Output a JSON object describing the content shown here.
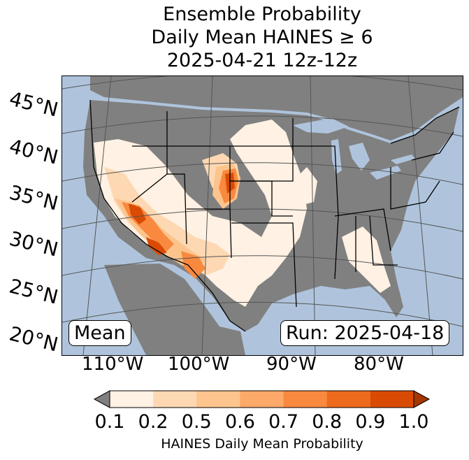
{
  "title": {
    "line1": "Ensemble Probability",
    "line2": "Daily Mean HAINES ≥ 6",
    "line3": "2025-04-21 12z-12z"
  },
  "map": {
    "latitude_labels": [
      "45°N",
      "40°N",
      "35°N",
      "30°N",
      "25°N",
      "20°N"
    ],
    "longitude_labels": [
      "110°W",
      "100°W",
      "90°W",
      "80°W"
    ],
    "mean_badge": "Mean",
    "run_badge": "Run: 2025-04-18",
    "colors": {
      "ocean": "#afc4dc",
      "land_masked": "#808080",
      "grid": "#555555",
      "borders": "#000000"
    }
  },
  "colorbar": {
    "label": "HAINES Daily Mean Probability",
    "ticks": [
      "0.1",
      "0.2",
      "0.5",
      "0.6",
      "0.7",
      "0.8",
      "0.9",
      "1.0"
    ],
    "under_color": "#808080",
    "bins": [
      {
        "from": 0.1,
        "to": 0.2,
        "color": "#fff1e3"
      },
      {
        "from": 0.2,
        "to": 0.5,
        "color": "#fdd8b2"
      },
      {
        "from": 0.5,
        "to": 0.6,
        "color": "#fdc48d"
      },
      {
        "from": 0.6,
        "to": 0.7,
        "color": "#fca96a"
      },
      {
        "from": 0.7,
        "to": 0.8,
        "color": "#f8893f"
      },
      {
        "from": 0.8,
        "to": 0.9,
        "color": "#ee6a1c"
      },
      {
        "from": 0.9,
        "to": 1.0,
        "color": "#d94b05"
      }
    ],
    "over_color": "#a63603"
  }
}
